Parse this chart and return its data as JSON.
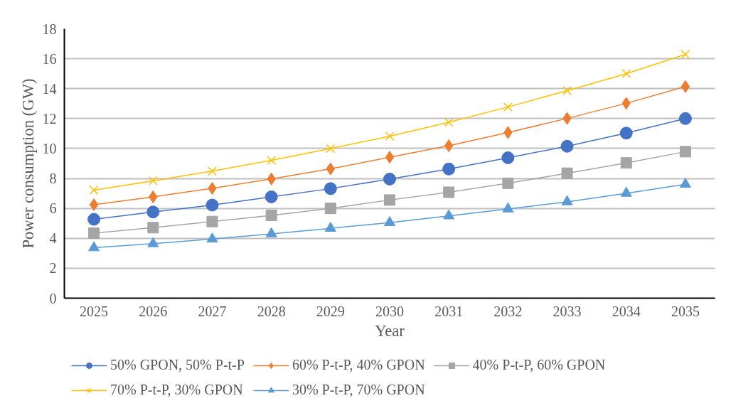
{
  "chart_data": {
    "type": "line",
    "xlabel": "Year",
    "ylabel": "Power consumption (GW)",
    "categories": [
      "2025",
      "2026",
      "2027",
      "2028",
      "2029",
      "2030",
      "2031",
      "2032",
      "2033",
      "2034",
      "2035"
    ],
    "ylim": [
      0,
      18
    ],
    "yticks": [
      0,
      2,
      4,
      6,
      8,
      10,
      12,
      14,
      16,
      18
    ],
    "grid": "y",
    "legend": "bottom",
    "line_style": "solid",
    "series": [
      {
        "name": "50% GPON, 50% P-t-P",
        "color": "#4472c4",
        "marker": "circle",
        "values": [
          5.27,
          5.76,
          6.22,
          6.77,
          7.32,
          7.96,
          8.63,
          9.38,
          10.15,
          11.03,
          12.0
        ]
      },
      {
        "name": "60% P-t-P, 40% GPON",
        "color": "#ed7d31",
        "marker": "diamond",
        "values": [
          6.25,
          6.77,
          7.34,
          7.97,
          8.64,
          9.42,
          10.19,
          11.07,
          12.01,
          13.02,
          14.14
        ]
      },
      {
        "name": "40% P-t-P, 60% GPON",
        "color": "#a5a5a5",
        "marker": "square",
        "values": [
          4.35,
          4.71,
          5.12,
          5.53,
          6.0,
          6.56,
          7.08,
          7.68,
          8.35,
          9.04,
          9.79
        ]
      },
      {
        "name": "70% P-t-P, 30% GPON",
        "color": "#ffc000",
        "marker": "cross",
        "values": [
          7.22,
          7.84,
          8.49,
          9.21,
          10.0,
          10.82,
          11.75,
          12.77,
          13.87,
          15.0,
          16.29
        ]
      },
      {
        "name": "30% P-t-P, 70% GPON",
        "color": "#5b9bd5",
        "marker": "triangle",
        "values": [
          3.37,
          3.64,
          3.95,
          4.3,
          4.67,
          5.05,
          5.5,
          5.96,
          6.44,
          7.01,
          7.61
        ]
      }
    ]
  }
}
